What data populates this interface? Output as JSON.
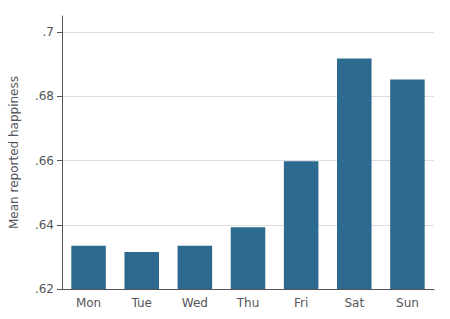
{
  "chart_data": {
    "type": "bar",
    "categories": [
      "Mon",
      "Tue",
      "Wed",
      "Thu",
      "Fri",
      "Sat",
      "Sun"
    ],
    "values": [
      0.6335,
      0.6315,
      0.6335,
      0.6392,
      0.6598,
      0.6918,
      0.6852
    ],
    "color": "#2d6a8f",
    "ylabel": "Mean reported happiness",
    "ylim": [
      0.62,
      0.705
    ],
    "yticks": [
      {
        "value": 0.62,
        "label": ".62"
      },
      {
        "value": 0.64,
        "label": ".64"
      },
      {
        "value": 0.66,
        "label": ".66"
      },
      {
        "value": 0.68,
        "label": ".68"
      },
      {
        "value": 0.7,
        "label": ".7"
      }
    ],
    "grid": true
  }
}
